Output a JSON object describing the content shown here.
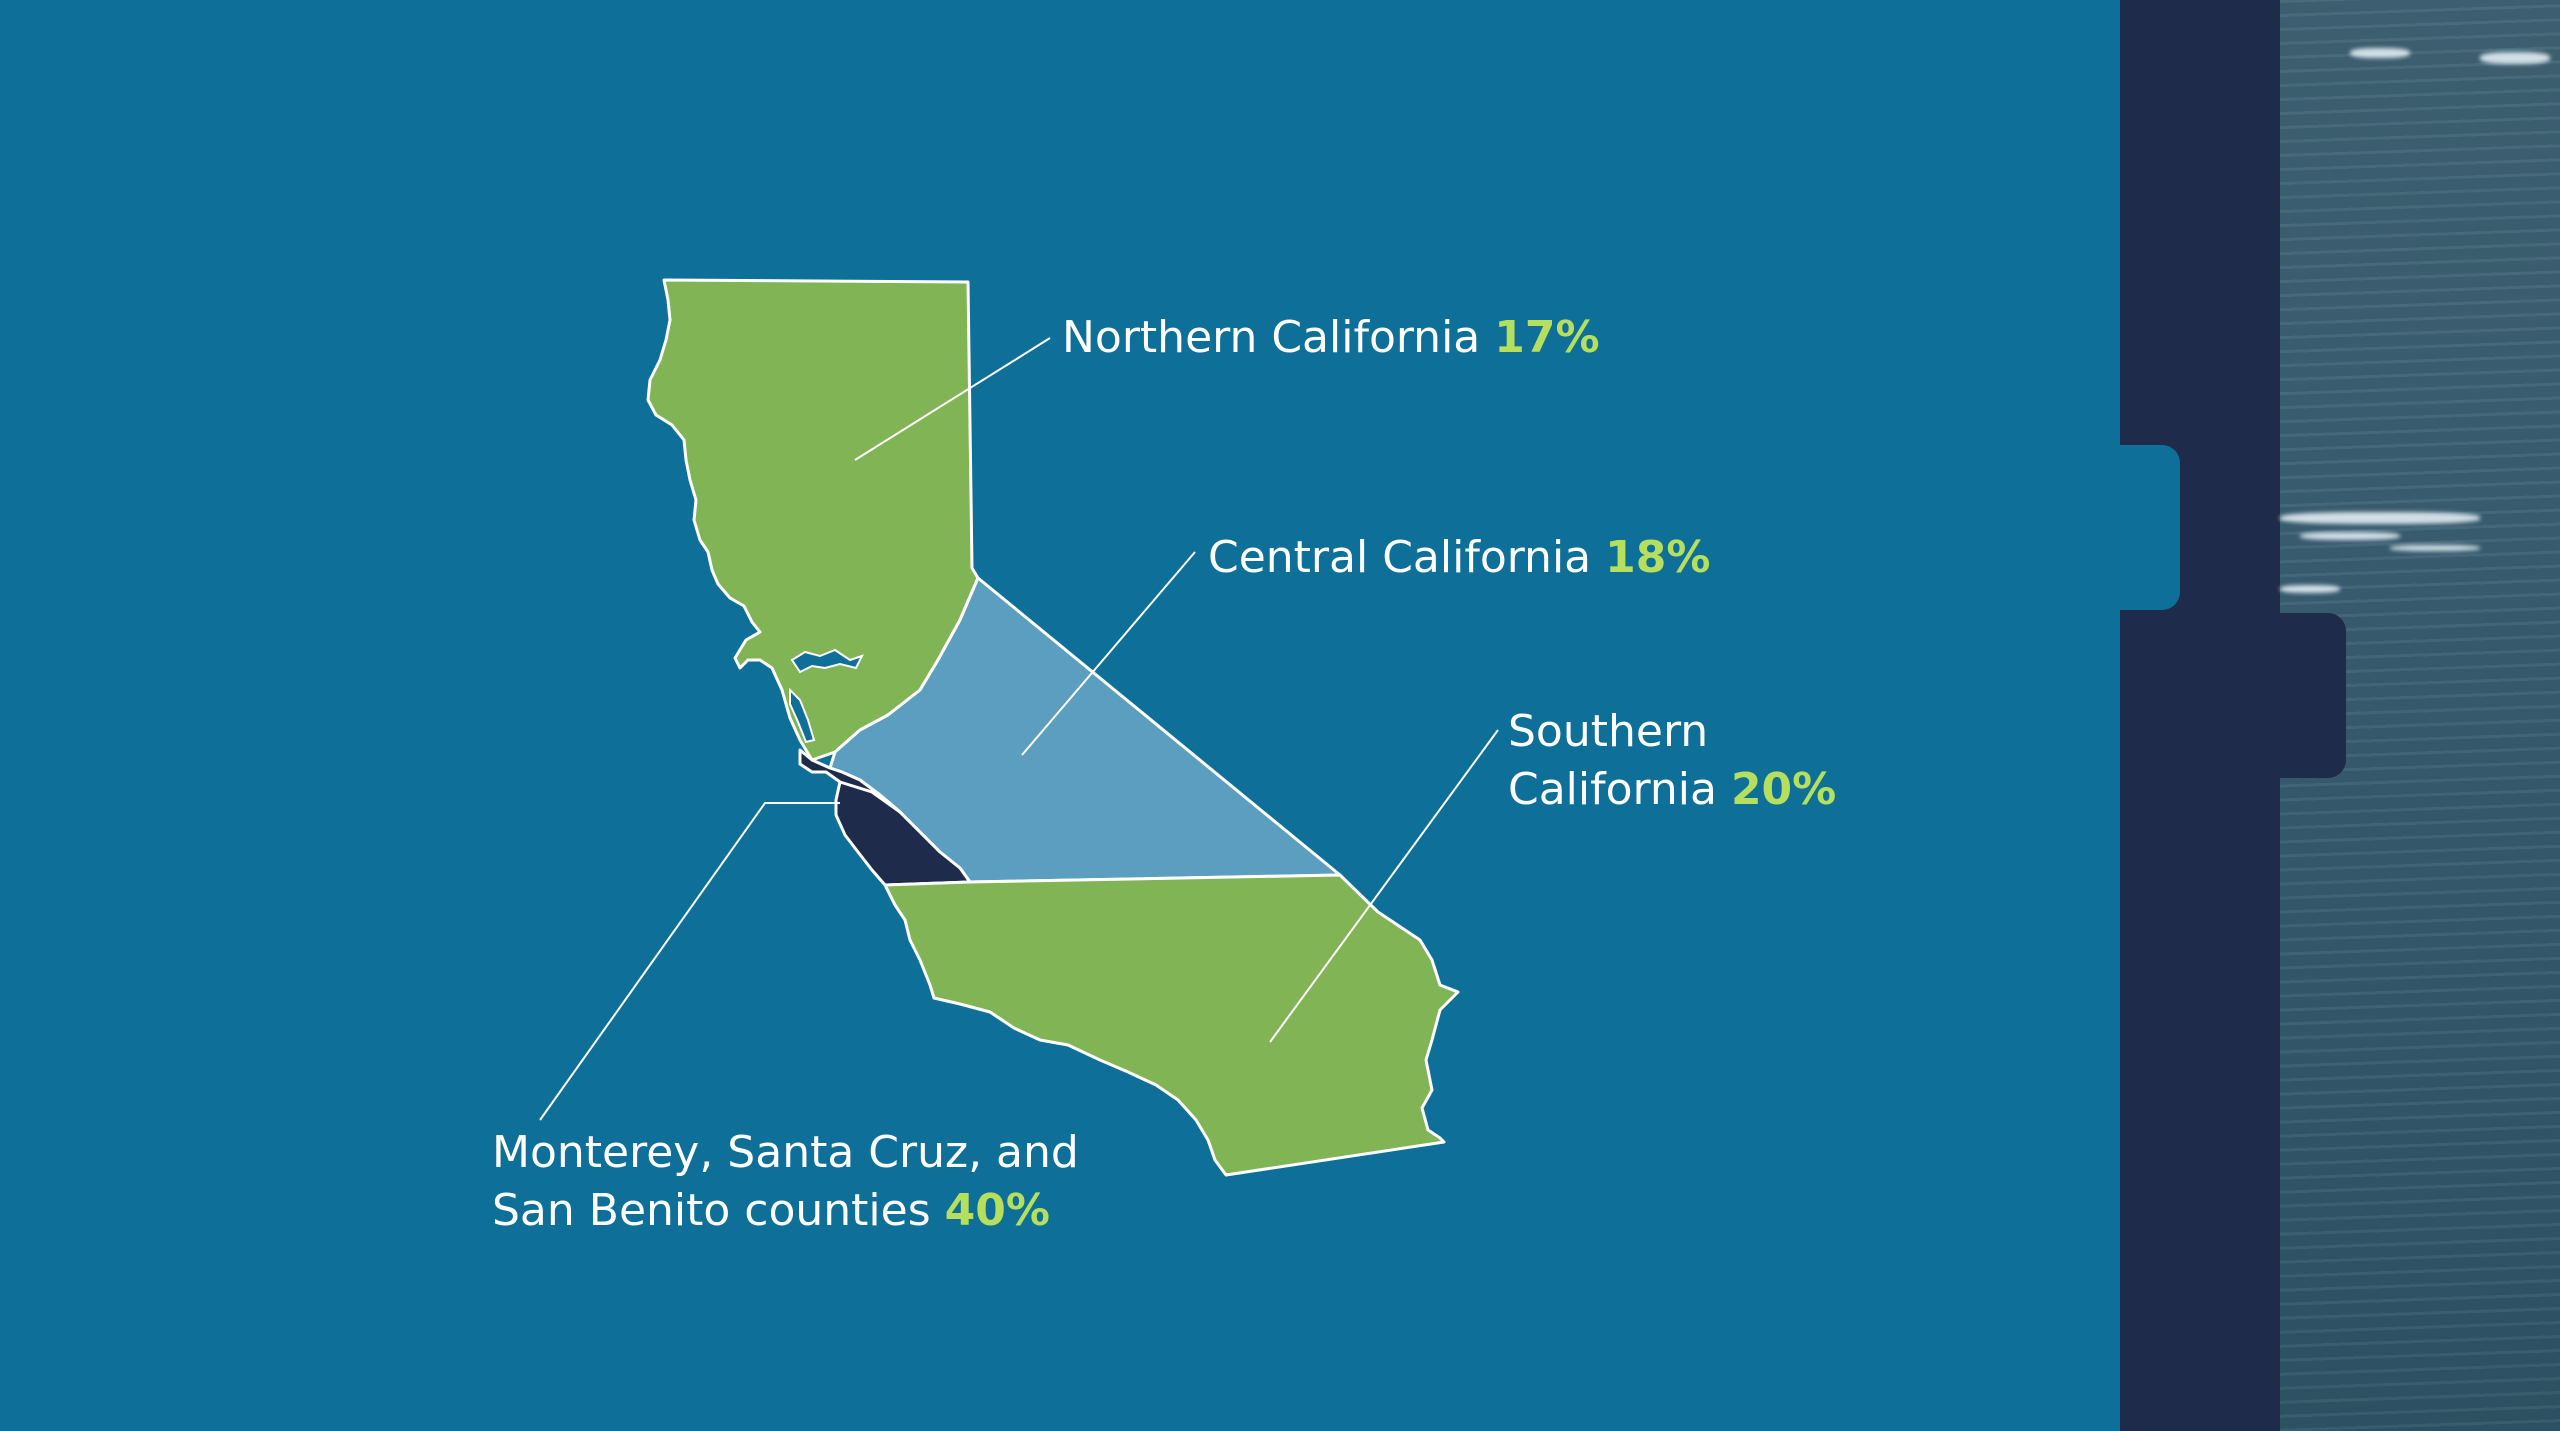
{
  "colors": {
    "background": "#0e7099",
    "nav": "#1f2b4a",
    "green": "#80b455",
    "light_blue": "#5b9ec0",
    "dark_navy": "#1f2b4a",
    "percent_text": "#b5df5c"
  },
  "regions": [
    {
      "id": "northern",
      "name": "Northern California",
      "percent": "17%",
      "fill": "green"
    },
    {
      "id": "central",
      "name": "Central California",
      "percent": "18%",
      "fill": "light_blue"
    },
    {
      "id": "southern",
      "name_line1": "Southern",
      "name_line2": "California",
      "percent": "20%",
      "fill": "green"
    },
    {
      "id": "monterey",
      "name_line1": "Monterey, Santa Cruz, and",
      "name_line2": "San Benito counties",
      "percent": "40%",
      "fill": "dark_navy"
    }
  ]
}
